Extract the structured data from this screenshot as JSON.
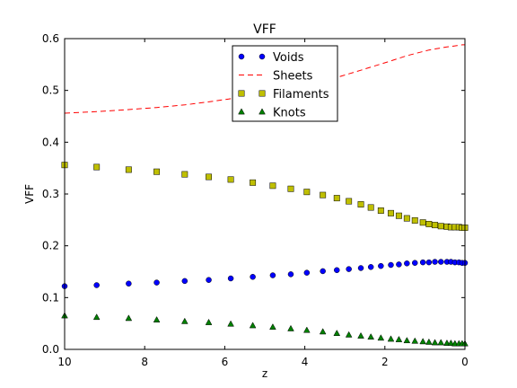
{
  "chart_data": {
    "type": "scatter",
    "title": "VFF",
    "xlabel": "z",
    "ylabel": "VFF",
    "xlim": [
      10,
      0
    ],
    "ylim": [
      0.0,
      0.6
    ],
    "x_inverted": true,
    "xticks": [
      10,
      8,
      6,
      4,
      2,
      0
    ],
    "yticks": [
      0.0,
      0.1,
      0.2,
      0.3,
      0.4,
      0.5,
      0.6
    ],
    "xtick_labels": [
      "10",
      "8",
      "6",
      "4",
      "2",
      "0"
    ],
    "ytick_labels": [
      "0.0",
      "0.1",
      "0.2",
      "0.3",
      "0.4",
      "0.5",
      "0.6"
    ],
    "grid": false,
    "legend_position": "top-center",
    "x": [
      10.0,
      9.2,
      8.4,
      7.7,
      7.0,
      6.4,
      5.85,
      5.3,
      4.8,
      4.35,
      3.95,
      3.55,
      3.2,
      2.9,
      2.6,
      2.35,
      2.1,
      1.85,
      1.65,
      1.45,
      1.25,
      1.05,
      0.9,
      0.75,
      0.6,
      0.45,
      0.35,
      0.25,
      0.15,
      0.07,
      0.0
    ],
    "series": [
      {
        "name": "Voids",
        "marker": "circle",
        "color": "#0000ff",
        "values": [
          0.122,
          0.124,
          0.127,
          0.129,
          0.132,
          0.134,
          0.137,
          0.14,
          0.143,
          0.145,
          0.148,
          0.151,
          0.153,
          0.155,
          0.157,
          0.159,
          0.161,
          0.163,
          0.164,
          0.166,
          0.167,
          0.168,
          0.168,
          0.169,
          0.169,
          0.169,
          0.169,
          0.168,
          0.168,
          0.167,
          0.167
        ]
      },
      {
        "name": "Sheets",
        "marker": "dashed-line",
        "color": "#ff0000",
        "values": [
          0.456,
          0.459,
          0.463,
          0.467,
          0.472,
          0.478,
          0.484,
          0.49,
          0.497,
          0.504,
          0.511,
          0.518,
          0.525,
          0.532,
          0.539,
          0.545,
          0.551,
          0.557,
          0.562,
          0.567,
          0.571,
          0.575,
          0.578,
          0.58,
          0.582,
          0.584,
          0.585,
          0.586,
          0.587,
          0.588,
          0.588
        ]
      },
      {
        "name": "Filaments",
        "marker": "square",
        "color": "#bfbf00",
        "values": [
          0.356,
          0.352,
          0.347,
          0.343,
          0.338,
          0.333,
          0.328,
          0.322,
          0.316,
          0.31,
          0.304,
          0.298,
          0.292,
          0.286,
          0.28,
          0.274,
          0.268,
          0.263,
          0.258,
          0.253,
          0.249,
          0.245,
          0.242,
          0.24,
          0.238,
          0.237,
          0.236,
          0.236,
          0.236,
          0.235,
          0.235
        ]
      },
      {
        "name": "Knots",
        "marker": "triangle",
        "color": "#008000",
        "values": [
          0.065,
          0.062,
          0.06,
          0.057,
          0.054,
          0.052,
          0.049,
          0.046,
          0.043,
          0.04,
          0.037,
          0.034,
          0.031,
          0.028,
          0.026,
          0.024,
          0.022,
          0.02,
          0.019,
          0.017,
          0.016,
          0.015,
          0.014,
          0.013,
          0.013,
          0.012,
          0.012,
          0.011,
          0.011,
          0.011,
          0.011
        ]
      }
    ]
  }
}
